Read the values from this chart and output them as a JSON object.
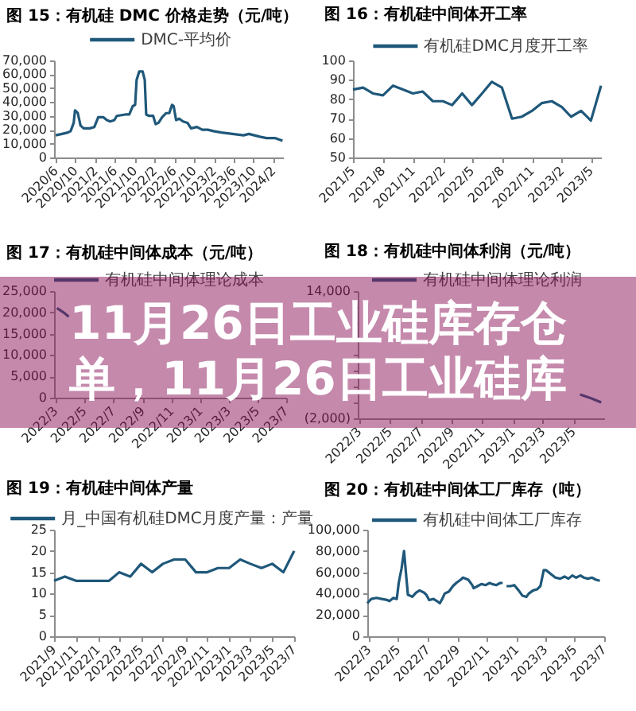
{
  "chart_data": [
    {
      "type": "line",
      "title": "图 15：有机硅 DMC 价格走势（元/吨）",
      "legend": "top",
      "x": [
        "2020-06-01",
        "2020-07-10",
        "2020-08-15",
        "2020-09-01",
        "2020-09-20",
        "2020-09-28",
        "2020-10-15",
        "2020-11-01",
        "2020-11-20",
        "2020-12-28",
        "2021-01-25",
        "2021-02-18",
        "2021-03-22",
        "2021-04-12",
        "2021-05-03",
        "2021-05-28",
        "2021-06-12",
        "2021-08-03",
        "2021-08-28",
        "2021-09-18",
        "2021-10-03",
        "2021-10-12",
        "2021-10-28",
        "2021-11-18",
        "2021-12-01",
        "2021-12-10",
        "2021-12-28",
        "2022-01-22",
        "2022-02-06",
        "2022-02-24",
        "2022-03-18",
        "2022-04-12",
        "2022-05-01",
        "2022-05-18",
        "2022-05-28",
        "2022-06-12",
        "2022-07-01",
        "2022-07-25",
        "2022-08-21",
        "2022-09-12",
        "2022-10-18",
        "2022-11-20",
        "2022-12-24",
        "2023-01-28",
        "2023-03-18",
        "2023-05-24",
        "2023-08-01",
        "2023-09-03",
        "2023-10-06",
        "2023-11-09",
        "2023-12-20",
        "2024-02-10",
        "2024-03-28"
      ],
      "series": [
        {
          "name": "DMC-平均价",
          "color": "#1f587a",
          "values": [
            16000,
            17000,
            18000,
            19000,
            25000,
            34000,
            32000,
            23000,
            21000,
            21000,
            22000,
            29000,
            29000,
            27000,
            26000,
            27000,
            30000,
            31000,
            31000,
            37000,
            38000,
            56000,
            62000,
            62000,
            56000,
            31000,
            30000,
            30000,
            24000,
            25000,
            29000,
            32000,
            32000,
            38000,
            37000,
            27000,
            28000,
            26000,
            25000,
            21000,
            22000,
            20000,
            20000,
            19000,
            18000,
            17000,
            16000,
            17000,
            16000,
            15000,
            14000,
            14000,
            12000
          ]
        }
      ],
      "xlim": [
        "2020-05-22",
        "2024-03-31"
      ],
      "xticks": [
        {
          "value": "2020-06",
          "label": "2020/6"
        },
        {
          "value": "2020-10",
          "label": "2020/10"
        },
        {
          "value": "2021-02",
          "label": "2021/2"
        },
        {
          "value": "2021-06",
          "label": "2021/6"
        },
        {
          "value": "2021-10",
          "label": "2021/10"
        },
        {
          "value": "2022-02",
          "label": "2022/2"
        },
        {
          "value": "2022-06",
          "label": "2022/6"
        },
        {
          "value": "2022-10",
          "label": "2022/10"
        },
        {
          "value": "2023-02",
          "label": "2023/2"
        },
        {
          "value": "2023-06",
          "label": "2023/6"
        },
        {
          "value": "2023-10",
          "label": "2023/10"
        },
        {
          "value": "2024-02",
          "label": "2024/2"
        }
      ],
      "ylim": [
        0,
        70000
      ],
      "yticks": [
        0,
        {
          "value": 10000,
          "label": "10,000"
        },
        {
          "value": 20000,
          "label": "20,000"
        },
        {
          "value": 30000,
          "label": "30,000"
        },
        {
          "value": 40000,
          "label": "40,000"
        },
        {
          "value": 50000,
          "label": "50,000"
        },
        {
          "value": 60000,
          "label": "60,000"
        },
        {
          "value": 70000,
          "label": "70,000"
        }
      ]
    },
    {
      "type": "line",
      "title": "图 16：有机硅中间体开工率",
      "legend": "top",
      "x": [
        "2021-05",
        "2021-06",
        "2021-07",
        "2021-08",
        "2021-09",
        "2021-10",
        "2021-11",
        "2021-12",
        "2022-01",
        "2022-02",
        "2022-03",
        "2022-04",
        "2022-05",
        "2022-06",
        "2022-07",
        "2022-08",
        "2022-09",
        "2022-10",
        "2022-11",
        "2022-12",
        "2023-01",
        "2023-02",
        "2023-03",
        "2023-04",
        "2023-05",
        "2023-06"
      ],
      "series": [
        {
          "name": "有机硅DMC月度开工率",
          "color": "#1f587a",
          "values": [
            85,
            86,
            83,
            82,
            87,
            85,
            83,
            84,
            79,
            79,
            77,
            83,
            77,
            83,
            89,
            86,
            70,
            71,
            74,
            78,
            79,
            76,
            71,
            74,
            69,
            87
          ]
        }
      ],
      "xlim": [
        "2021-05",
        "2023-06"
      ],
      "xticks": [
        {
          "value": "2021-05",
          "label": "2021/5"
        },
        {
          "value": "2021-08",
          "label": "2021/8"
        },
        {
          "value": "2021-11",
          "label": "2021/11"
        },
        {
          "value": "2022-02",
          "label": "2022/2"
        },
        {
          "value": "2022-05",
          "label": "2022/5"
        },
        {
          "value": "2022-08",
          "label": "2022/8"
        },
        {
          "value": "2022-11",
          "label": "2022/11"
        },
        {
          "value": "2023-02",
          "label": "2023/2"
        },
        {
          "value": "2023-05",
          "label": "2023/5"
        }
      ],
      "ylim": [
        50,
        100
      ],
      "yticks": [
        50,
        60,
        70,
        80,
        90,
        100
      ]
    },
    {
      "type": "line",
      "title": "图 17：有机硅中间体成本（元/吨）",
      "legend": "top",
      "x": [
        "2022-03-04",
        "2022-03-18",
        "2022-03-29"
      ],
      "series": [
        {
          "name": "有机硅中间体理论成本",
          "color": "#1f587a",
          "values": [
            21000,
            20000,
            19000
          ]
        }
      ],
      "xlim": [
        "2022-02-26",
        "2023-07-01"
      ],
      "xticks": [
        {
          "value": "2022-03",
          "label": "2022/3"
        },
        {
          "value": "2022-05",
          "label": "2022/5"
        },
        {
          "value": "2022-07",
          "label": "2022/7"
        },
        {
          "value": "2022-09",
          "label": "2022/9"
        },
        {
          "value": "2022-11",
          "label": "2022/11"
        },
        {
          "value": "2023-01",
          "label": "2023/1"
        },
        {
          "value": "2023-03",
          "label": "2023/3"
        },
        {
          "value": "2023-05",
          "label": "2023/5"
        },
        {
          "value": "2023-07",
          "label": "2023/7"
        }
      ],
      "ylim": [
        0,
        25000
      ],
      "yticks": [
        0,
        {
          "value": 5000,
          "label": "5,000"
        },
        {
          "value": 10000,
          "label": "10,000"
        },
        {
          "value": 15000,
          "label": "15,000"
        },
        {
          "value": 20000,
          "label": "20,000"
        },
        {
          "value": 25000,
          "label": "25,000"
        }
      ]
    },
    {
      "type": "line",
      "title": "图 18：有机硅中间体利润（元/吨）",
      "legend": "top",
      "x": [
        "2023-05-14",
        "2023-06-06",
        "2023-06-25"
      ],
      "series": [
        {
          "name": "有机硅中间体理论利润",
          "color": "#1f587a",
          "values": [
            1000,
            500,
            0
          ]
        }
      ],
      "xlim": [
        "2022-02-26",
        "2023-07-01"
      ],
      "xticks": [
        {
          "value": "2022-03",
          "label": "2022/3"
        },
        {
          "value": "2022-05",
          "label": "2022/5"
        },
        {
          "value": "2022-07",
          "label": "2022/7"
        },
        {
          "value": "2022-09",
          "label": "2022/9"
        },
        {
          "value": "2022-11",
          "label": "2022/11"
        },
        {
          "value": "2023-01",
          "label": "2023/1"
        },
        {
          "value": "2023-03",
          "label": "2023/3"
        },
        {
          "value": "2023-05",
          "label": "2023/5"
        }
      ],
      "ylim": [
        -2000,
        14000
      ],
      "yticks": [
        {
          "value": -2000,
          "label": "(2,000)"
        },
        {
          "value": 0,
          "label": null
        },
        {
          "value": 2000,
          "label": null
        },
        {
          "value": 4000,
          "label": null
        },
        {
          "value": 6000,
          "label": null
        },
        {
          "value": 8000,
          "label": null
        },
        {
          "value": 10000,
          "label": null
        },
        {
          "value": 12000,
          "label": null
        },
        {
          "value": 14000,
          "label": "14,000"
        }
      ]
    },
    {
      "type": "other",
      "annotations": [
        "11月26日工业硅库存仓",
        "单，11月26日工业硅库"
      ],
      "color": "#8c145a"
    },
    {
      "type": "line",
      "title": "图 19：有机硅中间体产量",
      "legend": "top",
      "x": [
        "2021-09",
        "2021-10",
        "2021-11",
        "2021-12",
        "2022-01",
        "2022-02",
        "2022-03",
        "2022-04",
        "2022-05",
        "2022-06",
        "2022-07",
        "2022-08",
        "2022-09",
        "2022-10",
        "2022-11",
        "2022-12",
        "2023-01",
        "2023-02",
        "2023-03",
        "2023-04",
        "2023-05",
        "2023-06",
        "2023-07"
      ],
      "series": [
        {
          "name": "月_中国有机硅DMC月度产量：产量",
          "color": "#1f587a",
          "values": [
            13,
            14,
            13,
            13,
            13,
            13,
            15,
            14,
            17,
            15,
            17,
            18,
            18,
            15,
            15,
            16,
            16,
            18,
            17,
            16,
            17,
            15,
            20
          ]
        }
      ],
      "xlim": [
        "2021-09",
        "2023-07"
      ],
      "xticks": [
        {
          "value": "2021-09",
          "label": "2021/9"
        },
        {
          "value": "2021-11",
          "label": "2021/11"
        },
        {
          "value": "2022-01",
          "label": "2022/1"
        },
        {
          "value": "2022-03",
          "label": "2022/3"
        },
        {
          "value": "2022-05",
          "label": "2022/5"
        },
        {
          "value": "2022-07",
          "label": "2022/7"
        },
        {
          "value": "2022-09",
          "label": "2022/9"
        },
        {
          "value": "2022-11",
          "label": "2022/11"
        },
        {
          "value": "2023-01",
          "label": "2023/1"
        },
        {
          "value": "2023-03",
          "label": "2023/3"
        },
        {
          "value": "2023-05",
          "label": "2023/5"
        },
        {
          "value": "2023-07",
          "label": "2023/7"
        }
      ],
      "ylim": [
        0,
        25
      ],
      "yticks": [
        0,
        5,
        10,
        15,
        20,
        25
      ]
    },
    {
      "type": "line",
      "title": "图 20：有机硅中间体工厂库存（吨）",
      "legend": "top",
      "x": [
        "2022-02-26",
        "2022-03-06",
        "2022-03-17",
        "2022-03-28",
        "2022-04-08",
        "2022-04-13",
        "2022-04-21",
        "2022-04-28",
        "2022-05-02",
        "2022-05-08",
        "2022-05-13",
        "2022-05-18",
        "2022-05-21",
        "2022-05-30",
        "2022-06-07",
        "2022-06-14",
        "2022-06-23",
        "2022-06-28",
        "2022-07-04",
        "2022-07-13",
        "2022-07-20",
        "2022-07-26",
        "2022-07-31",
        "2022-08-05",
        "2022-08-14",
        "2022-08-22",
        "2022-08-29",
        "2022-09-07",
        "2022-09-12",
        "2022-09-23",
        "2022-10-01",
        "2022-10-04",
        "2022-10-12",
        "2022-10-20",
        "2022-10-29",
        "2022-11-06",
        "2022-11-11",
        "2022-11-20",
        "2022-11-28",
        "2022-12-03",
        "2022-12-07",
        "2022-12-11",
        "2022-12-19",
        "2022-12-27",
        "2023-01-05",
        "2023-01-13",
        "2023-01-21",
        "2023-01-26",
        "2023-02-04",
        "2023-02-12",
        "2023-02-19",
        "2023-02-26",
        "2023-03-03",
        "2023-03-11",
        "2023-03-22",
        "2023-04-01",
        "2023-04-10",
        "2023-04-18",
        "2023-04-26",
        "2023-05-04",
        "2023-05-13",
        "2023-05-20",
        "2023-05-28",
        "2023-06-06",
        "2023-06-14",
        "2023-06-22"
      ],
      "series": [
        {
          "name": "有机硅中间体工厂库存",
          "color": "#1f587a",
          "values": [
            31000,
            35000,
            36000,
            35000,
            34000,
            33000,
            36000,
            35000,
            50000,
            64000,
            80000,
            54000,
            39000,
            37000,
            41000,
            43000,
            41000,
            39000,
            34000,
            35000,
            33000,
            31000,
            35000,
            40000,
            42000,
            47000,
            50000,
            53000,
            55000,
            53000,
            48000,
            45000,
            47000,
            49000,
            48000,
            50000,
            49000,
            48000,
            50000,
            50000,
            null,
            47000,
            47000,
            48000,
            43000,
            38000,
            37000,
            40000,
            43000,
            44000,
            47000,
            62000,
            62000,
            59000,
            55000,
            54000,
            56000,
            54000,
            57000,
            55000,
            57000,
            55000,
            54000,
            55000,
            53000,
            52000
          ]
        }
      ],
      "xlim": [
        "2022-02-26",
        "2023-07-01"
      ],
      "xticks": [
        {
          "value": "2022-03",
          "label": "2022/3"
        },
        {
          "value": "2022-05",
          "label": "2022/5"
        },
        {
          "value": "2022-07",
          "label": "2022/7"
        },
        {
          "value": "2022-09",
          "label": "2022/9"
        },
        {
          "value": "2022-11",
          "label": "2022/11"
        },
        {
          "value": "2023-01",
          "label": "2023/1"
        },
        {
          "value": "2023-03",
          "label": "2023/3"
        },
        {
          "value": "2023-05",
          "label": "2023/5"
        },
        {
          "value": "2023-07",
          "label": "2023/7"
        }
      ],
      "ylim": [
        0,
        100000
      ],
      "yticks": [
        0,
        {
          "value": 20000,
          "label": "20,000"
        },
        {
          "value": 40000,
          "label": "40,000"
        },
        {
          "value": 60000,
          "label": "60,000"
        },
        {
          "value": 80000,
          "label": "80,000"
        },
        {
          "value": 100000,
          "label": "100,000"
        }
      ]
    }
  ]
}
